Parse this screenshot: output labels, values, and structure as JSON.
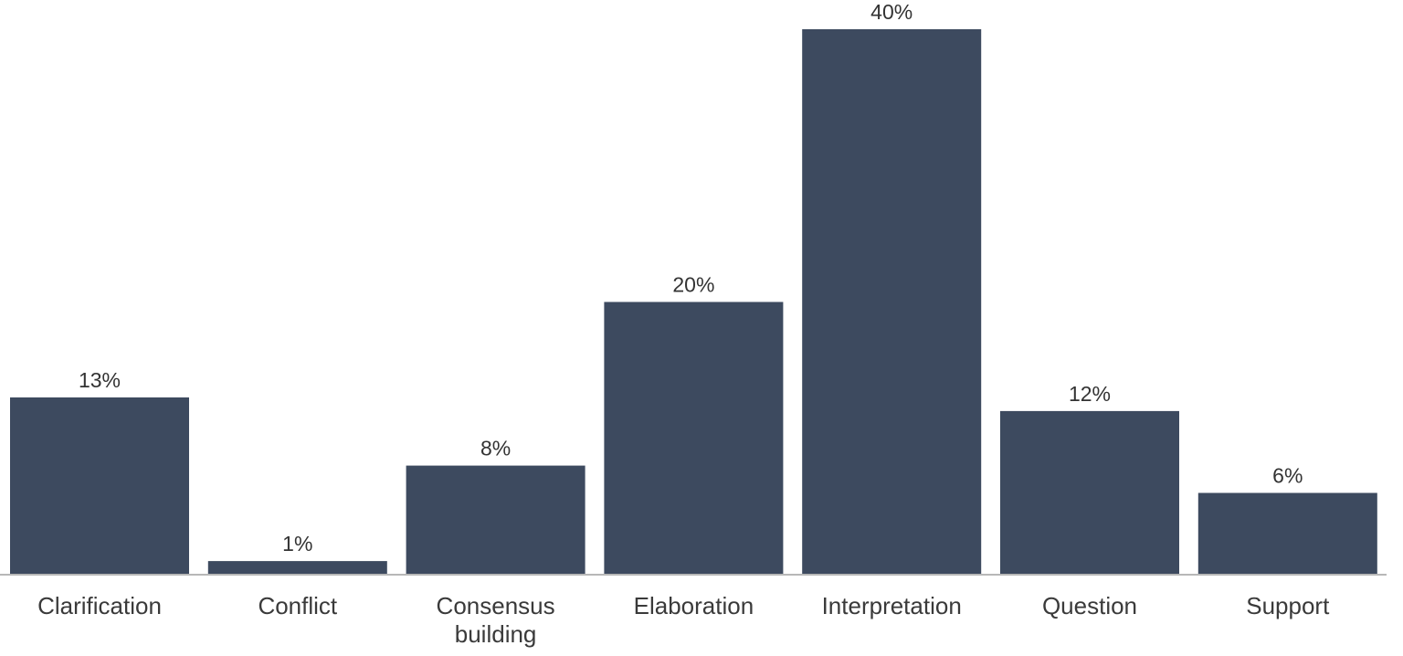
{
  "chart_data": {
    "type": "bar",
    "categories": [
      "Clarification",
      "Conflict",
      "Consensus building",
      "Elaboration",
      "Interpretation",
      "Question",
      "Support"
    ],
    "category_lines": [
      [
        "Clarification"
      ],
      [
        "Conflict"
      ],
      [
        "Consensus",
        "building"
      ],
      [
        "Elaboration"
      ],
      [
        "Interpretation"
      ],
      [
        "Question"
      ],
      [
        "Support"
      ]
    ],
    "values": [
      13,
      1,
      8,
      20,
      40,
      12,
      6
    ],
    "data_labels": [
      "13%",
      "1%",
      "8%",
      "20%",
      "40%",
      "12%",
      "6%"
    ],
    "unit": "%",
    "ylim": [
      0,
      40
    ],
    "grid": false,
    "legend": "none",
    "bar_color": "#3d4a5f",
    "axis_color": "#b8b8b8"
  }
}
